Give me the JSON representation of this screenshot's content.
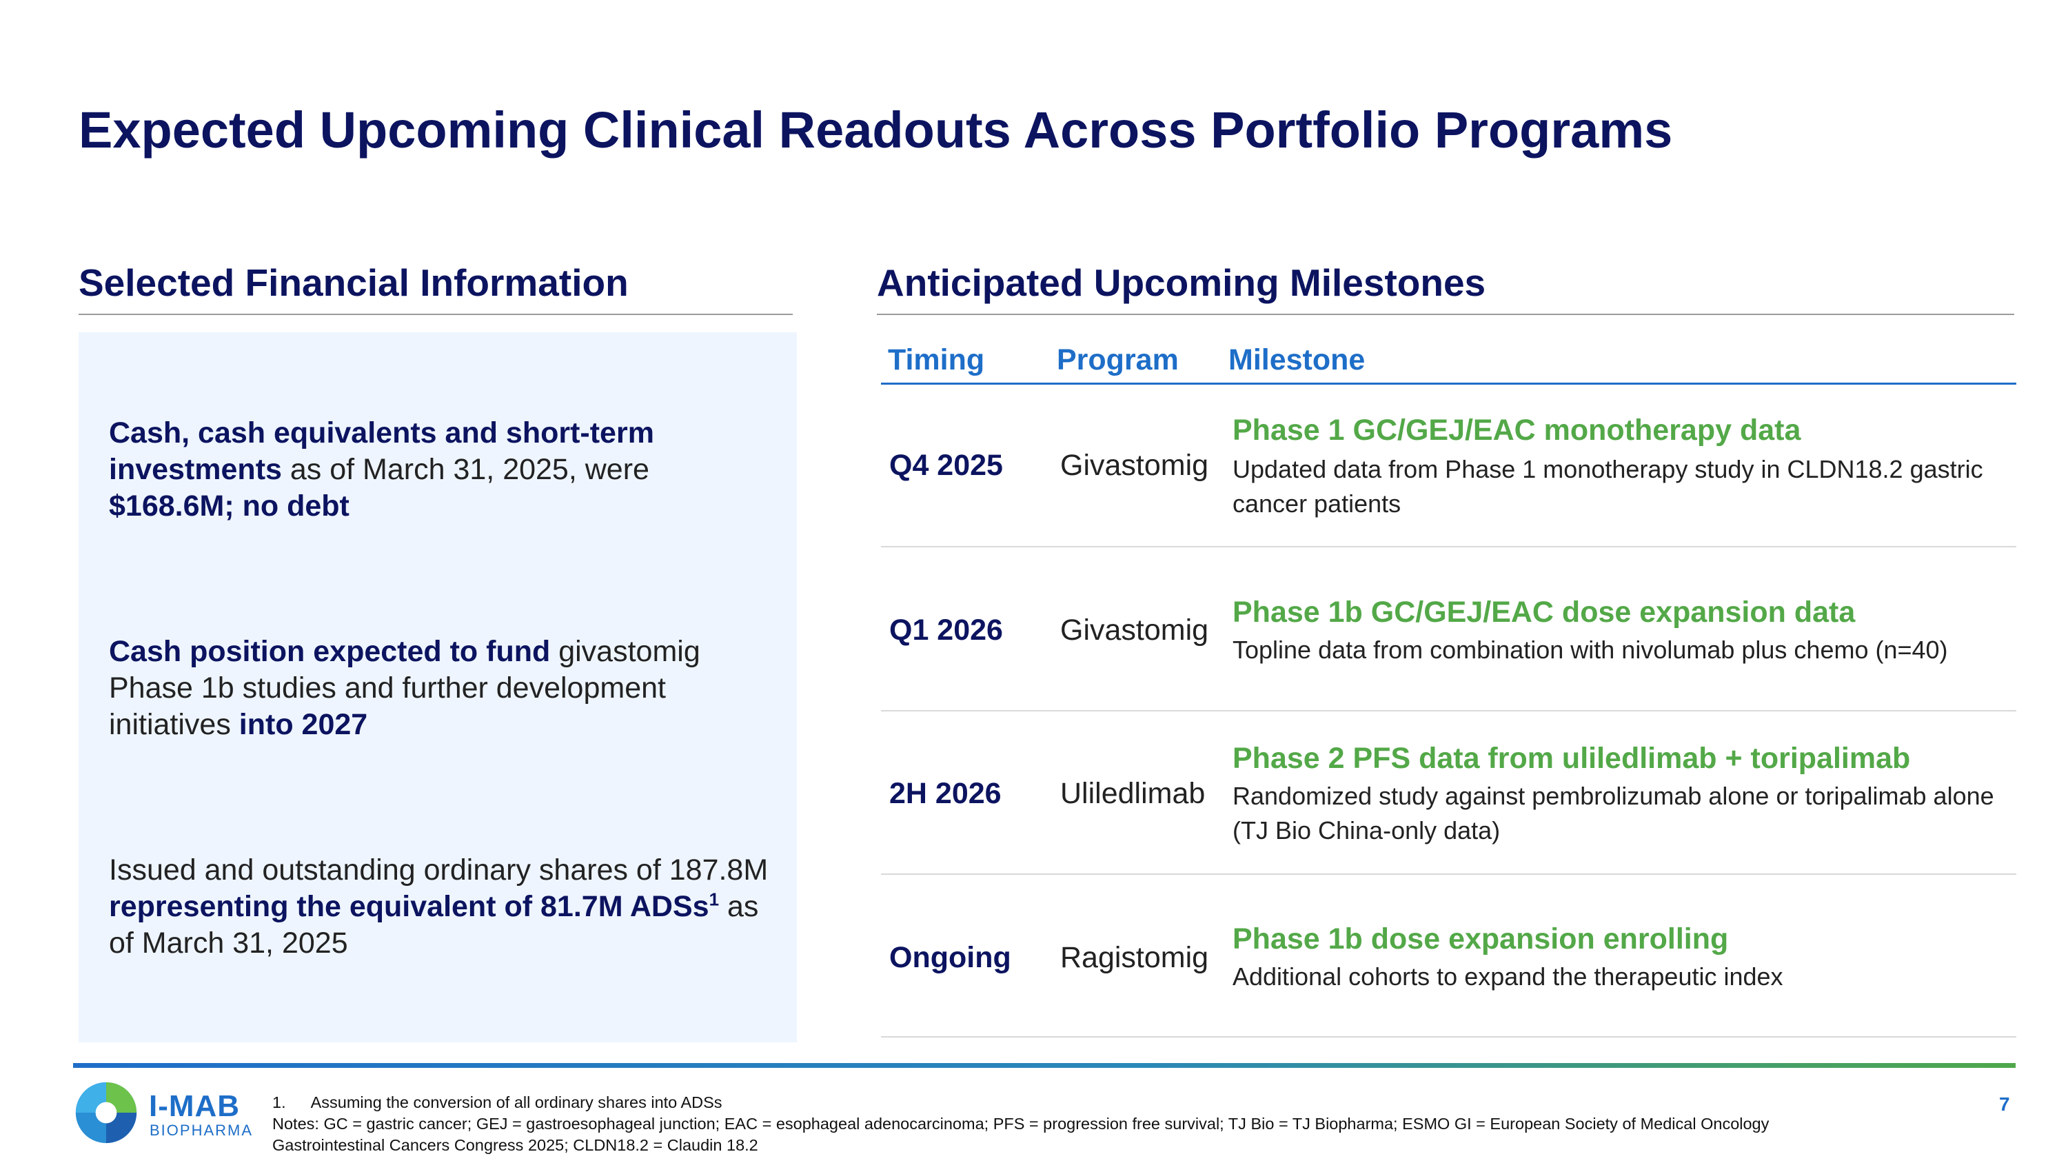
{
  "title": "Expected Upcoming Clinical Readouts Across Portfolio Programs",
  "financial": {
    "heading": "Selected Financial Information",
    "item1": {
      "b1": "Cash, cash equivalents and short-term investments",
      "t1": " as of March 31, 2025, were ",
      "b2": "$168.6M; no debt"
    },
    "item2": {
      "b1": "Cash position expected to fund",
      "t1": " givastomig Phase 1b studies and further development initiatives ",
      "b2": "into 2027"
    },
    "item3": {
      "t1": "Issued and outstanding ordinary shares of 187.8M ",
      "b1": "representing the equivalent of 81.7M ADSs",
      "sup": "1",
      "t2": " as of March 31, 2025"
    }
  },
  "milestones": {
    "heading": "Anticipated Upcoming Milestones",
    "columns": {
      "timing": "Timing",
      "program": "Program",
      "milestone": "Milestone"
    },
    "rows": [
      {
        "timing": "Q4 2025",
        "program": "Givastomig",
        "title": "Phase 1 GC/GEJ/EAC monotherapy data",
        "desc": "Updated data from Phase 1 monotherapy study in CLDN18.2 gastric cancer patients"
      },
      {
        "timing": "Q1 2026",
        "program": "Givastomig",
        "title": "Phase 1b GC/GEJ/EAC dose expansion data",
        "desc": "Topline data from combination with nivolumab plus chemo (n=40)"
      },
      {
        "timing": "2H 2026",
        "program": "Uliledlimab",
        "title": "Phase 2 PFS data from uliledlimab + toripalimab",
        "desc": "Randomized study against pembrolizumab alone or toripalimab alone (TJ Bio China-only data)"
      },
      {
        "timing": "Ongoing",
        "program": "Ragistomig",
        "title": "Phase 1b dose expansion enrolling",
        "desc": "Additional cohorts to expand the therapeutic index"
      }
    ]
  },
  "logo": {
    "name": "I-MAB",
    "sub": "BIOPHARMA",
    "icon": "imab-logo-icon"
  },
  "footnotes": {
    "fn1_num": "1.",
    "fn1_text": "Assuming the conversion of all ordinary shares into ADSs",
    "notes_line1": "Notes: GC = gastric cancer; GEJ = gastroesophageal junction; EAC = esophageal adenocarcinoma; PFS = progression free survival; TJ Bio = TJ Biopharma; ESMO GI = European Society of Medical Oncology",
    "notes_line2": "Gastrointestinal Cancers Congress 2025; CLDN18.2 = Claudin 18.2"
  },
  "page_number": "7",
  "colors": {
    "navy": "#0c1460",
    "blue": "#1e6ec8",
    "green": "#53a848",
    "panel": "#eef5ff"
  }
}
